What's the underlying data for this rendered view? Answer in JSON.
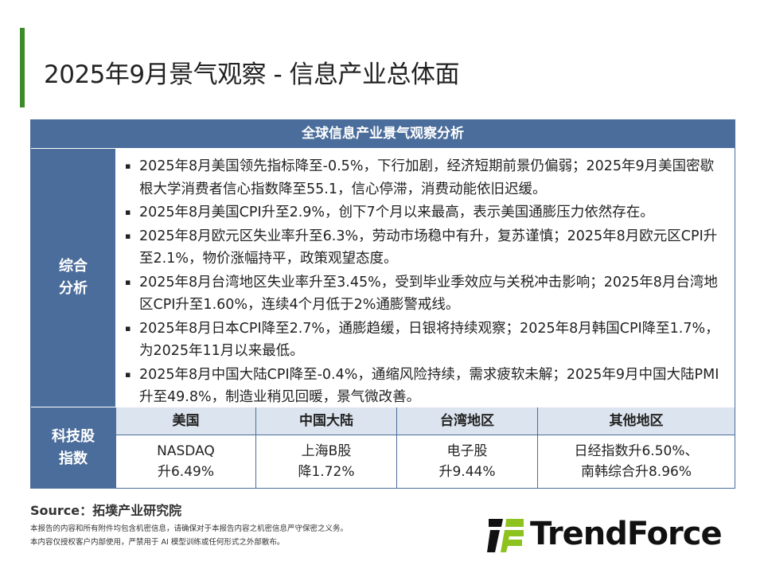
{
  "title": "2025年9月景气观察 - 信息产业总体面",
  "table": {
    "header": "全球信息产业景气观察分析",
    "analysis_label_1": "综合",
    "analysis_label_2": "分析",
    "bullets": [
      "2025年8月美国领先指标降至-0.5%，下行加剧，经济短期前景仍偏弱；2025年9月美国密歇根大学消费者信心指数降至55.1，信心停滞，消费动能依旧迟缓。",
      "2025年8月美国CPI升至2.9%，创下7个月以来最高，表示美国通膨压力依然存在。",
      "2025年8月欧元区失业率升至6.3%，劳动市场稳中有升，复苏谨慎；2025年8月欧元区CPI升至2.1%，物价涨幅持平，政策观望态度。",
      "2025年8月台湾地区失业率升至3.45%，受到毕业季效应与关税冲击影响；2025年8月台湾地区CPI升至1.60%，连续4个月低于2%通膨警戒线。",
      "2025年8月日本CPI降至2.7%，通膨趋缓，日银将持续观察；2025年8月韩国CPI降至1.7%，为2025年11月以来最低。",
      "2025年8月中国大陆CPI降至-0.4%，通缩风险持续，需求疲软未解；2025年9月中国大陆PMI升至49.8%，制造业稍见回暖，景气微改善。"
    ],
    "stock_label_1": "科技股",
    "stock_label_2": "指数",
    "stock_headers": [
      "美国",
      "中国大陆",
      "台湾地区",
      "其他地区"
    ],
    "stock_values": [
      [
        "NASDAQ",
        "升6.49%"
      ],
      [
        "上海B股",
        "降1.72%"
      ],
      [
        "电子股",
        "升9.44%"
      ],
      [
        "日经指数升6.50%、",
        "南韩综合升8.96%"
      ]
    ]
  },
  "source": "Source：拓墣产业研究院",
  "notes": [
    "本报告的内容和所有附件均包含机密信息，请确保对于本报告内容之机密信息严守保密之义务。",
    "本内容仅授权客户内部使用，严禁用于 AI 模型训练或任何形式之外部散布。"
  ],
  "logo": "TrendForce",
  "colors": {
    "accent_green": "#3d8a2a",
    "table_blue": "#4b6d9b",
    "header_light": "#dce4ef",
    "logo_green": "#8dc21f"
  }
}
